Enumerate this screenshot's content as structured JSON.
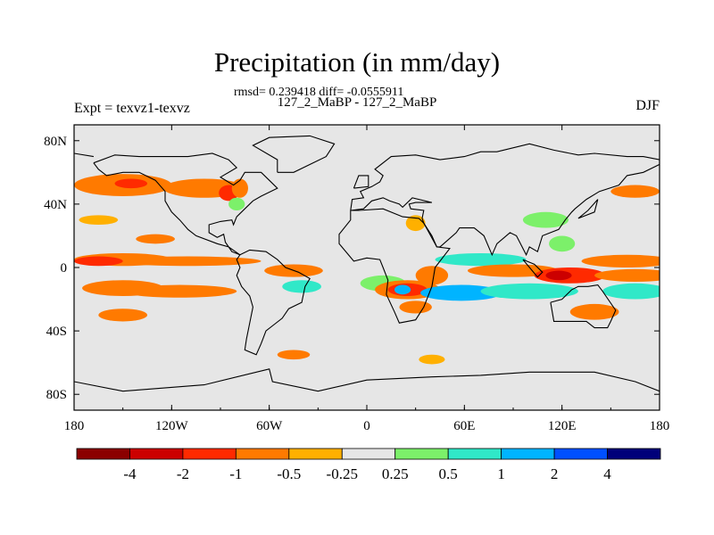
{
  "chart_data": {
    "type": "heatmap",
    "title": "Precipitation (in mm/day)",
    "stats_line": "rmsd= 0.239418 diff= -0.0555911",
    "cases_line": "127_2_MaBP - 127_2_MaBP",
    "left_label": "Expt = texvz1-texvz",
    "right_label": "DJF",
    "projection": "cylindrical equidistant",
    "xlim": [
      -180,
      180
    ],
    "ylim": [
      -90,
      90
    ],
    "x_ticks": [
      {
        "value": -180,
        "label": "180"
      },
      {
        "value": -120,
        "label": "120W"
      },
      {
        "value": -60,
        "label": "60W"
      },
      {
        "value": 0,
        "label": "0"
      },
      {
        "value": 60,
        "label": "60E"
      },
      {
        "value": 120,
        "label": "120E"
      },
      {
        "value": 180,
        "label": "180"
      }
    ],
    "y_ticks": [
      {
        "value": 80,
        "label": "80N"
      },
      {
        "value": 40,
        "label": "40N"
      },
      {
        "value": 0,
        "label": "0"
      },
      {
        "value": -40,
        "label": "40S"
      },
      {
        "value": -80,
        "label": "80S"
      }
    ],
    "colorbar": {
      "labels": [
        "-4",
        "-2",
        "-1",
        "-0.5",
        "-0.25",
        "0.25",
        "0.5",
        "1",
        "2",
        "4"
      ],
      "colors": [
        "#8b0000",
        "#cc0000",
        "#ff2a00",
        "#ff7a00",
        "#ffb000",
        "#e6e6e6",
        "#7cf06a",
        "#30e8c8",
        "#00b4ff",
        "#0050ff",
        "#00007a"
      ]
    },
    "background_color": "#e6e6e6",
    "anomaly_regions": [
      {
        "lon": -150,
        "lat": 5,
        "dlon": 30,
        "dlat": 4,
        "level": -0.5
      },
      {
        "lon": -110,
        "lat": 4,
        "dlon": 45,
        "dlat": 3,
        "level": -0.5
      },
      {
        "lon": -165,
        "lat": 4,
        "dlon": 15,
        "dlat": 3,
        "level": -1
      },
      {
        "lon": -150,
        "lat": -13,
        "dlon": 25,
        "dlat": 5,
        "level": -0.5
      },
      {
        "lon": -115,
        "lat": -15,
        "dlon": 35,
        "dlat": 4,
        "level": -0.5
      },
      {
        "lon": -150,
        "lat": 52,
        "dlon": 30,
        "dlat": 7,
        "level": -0.5
      },
      {
        "lon": -145,
        "lat": 53,
        "dlon": 10,
        "dlat": 3,
        "level": -1
      },
      {
        "lon": -100,
        "lat": 50,
        "dlon": 25,
        "dlat": 6,
        "level": -0.5
      },
      {
        "lon": -85,
        "lat": 47,
        "dlon": 6,
        "dlat": 5,
        "level": -1
      },
      {
        "lon": -78,
        "lat": 50,
        "dlon": 5,
        "dlat": 6,
        "level": -0.5
      },
      {
        "lon": -165,
        "lat": 30,
        "dlon": 12,
        "dlat": 3,
        "level": -0.25
      },
      {
        "lon": -130,
        "lat": 18,
        "dlon": 12,
        "dlat": 3,
        "level": -0.5
      },
      {
        "lon": -150,
        "lat": -30,
        "dlon": 15,
        "dlat": 4,
        "level": -0.5
      },
      {
        "lon": -45,
        "lat": -2,
        "dlon": 18,
        "dlat": 4,
        "level": -0.5
      },
      {
        "lon": -40,
        "lat": -12,
        "dlon": 12,
        "dlat": 4,
        "level": 0.5
      },
      {
        "lon": 10,
        "lat": -10,
        "dlon": 14,
        "dlat": 5,
        "level": 0.25
      },
      {
        "lon": 25,
        "lat": -14,
        "dlon": 20,
        "dlat": 6,
        "level": -0.5
      },
      {
        "lon": 25,
        "lat": -14,
        "dlon": 12,
        "dlat": 4,
        "level": -1
      },
      {
        "lon": 22,
        "lat": -14,
        "dlon": 5,
        "dlat": 3,
        "level": 1
      },
      {
        "lon": 40,
        "lat": -5,
        "dlon": 10,
        "dlat": 6,
        "level": -0.5
      },
      {
        "lon": 30,
        "lat": -25,
        "dlon": 10,
        "dlat": 4,
        "level": -0.5
      },
      {
        "lon": 58,
        "lat": -16,
        "dlon": 25,
        "dlat": 5,
        "level": 1
      },
      {
        "lon": 70,
        "lat": 5,
        "dlon": 28,
        "dlat": 4,
        "level": 0.5
      },
      {
        "lon": 90,
        "lat": -2,
        "dlon": 28,
        "dlat": 4,
        "level": -0.5
      },
      {
        "lon": 100,
        "lat": -15,
        "dlon": 30,
        "dlat": 5,
        "level": 0.5
      },
      {
        "lon": 125,
        "lat": -5,
        "dlon": 22,
        "dlat": 5,
        "level": -1
      },
      {
        "lon": 118,
        "lat": -5,
        "dlon": 8,
        "dlat": 3,
        "level": -2
      },
      {
        "lon": 160,
        "lat": 4,
        "dlon": 28,
        "dlat": 4,
        "level": -0.5
      },
      {
        "lon": 165,
        "lat": -5,
        "dlon": 25,
        "dlat": 4,
        "level": -0.5
      },
      {
        "lon": 165,
        "lat": -15,
        "dlon": 20,
        "dlat": 5,
        "level": 0.5
      },
      {
        "lon": 140,
        "lat": -28,
        "dlon": 15,
        "dlat": 5,
        "level": -0.5
      },
      {
        "lon": 110,
        "lat": 30,
        "dlon": 14,
        "dlat": 5,
        "level": 0.25
      },
      {
        "lon": 120,
        "lat": 15,
        "dlon": 8,
        "dlat": 5,
        "level": 0.25
      },
      {
        "lon": 165,
        "lat": 48,
        "dlon": 15,
        "dlat": 4,
        "level": -0.5
      },
      {
        "lon": 30,
        "lat": 28,
        "dlon": 6,
        "dlat": 5,
        "level": -0.25
      },
      {
        "lon": -80,
        "lat": 40,
        "dlon": 5,
        "dlat": 4,
        "level": 0.25
      },
      {
        "lon": -45,
        "lat": -55,
        "dlon": 10,
        "dlat": 3,
        "level": -0.5
      },
      {
        "lon": 40,
        "lat": -58,
        "dlon": 8,
        "dlat": 3,
        "level": -0.25
      }
    ],
    "coastlines": [
      [
        [
          -168,
          66
        ],
        [
          -155,
          71
        ],
        [
          -140,
          70
        ],
        [
          -125,
          70
        ],
        [
          -110,
          70
        ],
        [
          -95,
          72
        ],
        [
          -85,
          68
        ],
        [
          -80,
          63
        ],
        [
          -90,
          57
        ],
        [
          -82,
          52
        ],
        [
          -78,
          55
        ],
        [
          -75,
          60
        ],
        [
          -65,
          60
        ],
        [
          -60,
          55
        ],
        [
          -55,
          50
        ],
        [
          -65,
          45
        ],
        [
          -70,
          42
        ],
        [
          -75,
          37
        ],
        [
          -80,
          32
        ],
        [
          -82,
          27
        ],
        [
          -83,
          30
        ],
        [
          -90,
          29
        ],
        [
          -97,
          27
        ],
        [
          -97,
          22
        ],
        [
          -92,
          19
        ],
        [
          -88,
          21
        ],
        [
          -87,
          16
        ],
        [
          -83,
          10
        ],
        [
          -78,
          8
        ],
        [
          -80,
          5
        ],
        [
          -78,
          0
        ],
        [
          -80,
          -5
        ],
        [
          -77,
          -12
        ],
        [
          -72,
          -18
        ],
        [
          -70,
          -25
        ],
        [
          -72,
          -35
        ],
        [
          -74,
          -45
        ],
        [
          -75,
          -52
        ],
        [
          -68,
          -55
        ],
        [
          -65,
          -48
        ],
        [
          -62,
          -40
        ],
        [
          -57,
          -36
        ],
        [
          -52,
          -32
        ],
        [
          -48,
          -26
        ],
        [
          -40,
          -22
        ],
        [
          -38,
          -12
        ],
        [
          -35,
          -7
        ],
        [
          -42,
          -3
        ],
        [
          -50,
          0
        ],
        [
          -55,
          5
        ],
        [
          -62,
          10
        ],
        [
          -72,
          11
        ],
        [
          -78,
          8
        ],
        [
          -85,
          13
        ],
        [
          -92,
          15
        ],
        [
          -105,
          20
        ],
        [
          -110,
          24
        ],
        [
          -115,
          30
        ],
        [
          -120,
          35
        ],
        [
          -124,
          42
        ],
        [
          -124,
          48
        ],
        [
          -130,
          55
        ],
        [
          -140,
          60
        ],
        [
          -150,
          60
        ],
        [
          -160,
          58
        ],
        [
          -165,
          62
        ],
        [
          -168,
          66
        ]
      ],
      [
        [
          -55,
          60
        ],
        [
          -45,
          60
        ],
        [
          -25,
          70
        ],
        [
          -20,
          78
        ],
        [
          -35,
          83
        ],
        [
          -60,
          82
        ],
        [
          -70,
          77
        ],
        [
          -55,
          68
        ],
        [
          -55,
          60
        ]
      ],
      [
        [
          -10,
          36
        ],
        [
          -5,
          36
        ],
        [
          10,
          37
        ],
        [
          22,
          32
        ],
        [
          32,
          31
        ],
        [
          35,
          28
        ],
        [
          43,
          13
        ],
        [
          51,
          12
        ],
        [
          42,
          0
        ],
        [
          40,
          -12
        ],
        [
          35,
          -25
        ],
        [
          30,
          -33
        ],
        [
          20,
          -35
        ],
        [
          17,
          -28
        ],
        [
          12,
          -17
        ],
        [
          13,
          -8
        ],
        [
          10,
          0
        ],
        [
          8,
          5
        ],
        [
          0,
          6
        ],
        [
          -8,
          4
        ],
        [
          -17,
          15
        ],
        [
          -17,
          21
        ],
        [
          -10,
          30
        ],
        [
          -10,
          36
        ]
      ],
      [
        [
          -10,
          36
        ],
        [
          -9,
          43
        ],
        [
          -2,
          44
        ],
        [
          -4,
          48
        ],
        [
          3,
          51
        ],
        [
          8,
          54
        ],
        [
          10,
          58
        ],
        [
          5,
          62
        ],
        [
          15,
          70
        ],
        [
          30,
          71
        ],
        [
          45,
          68
        ],
        [
          60,
          70
        ],
        [
          70,
          73
        ],
        [
          80,
          73
        ],
        [
          100,
          78
        ],
        [
          115,
          74
        ],
        [
          130,
          71
        ],
        [
          140,
          72
        ],
        [
          160,
          70
        ],
        [
          170,
          70
        ],
        [
          180,
          68
        ],
        [
          180,
          65
        ],
        [
          170,
          60
        ],
        [
          160,
          58
        ],
        [
          155,
          52
        ],
        [
          143,
          48
        ],
        [
          135,
          43
        ],
        [
          128,
          37
        ],
        [
          126,
          35
        ],
        [
          122,
          30
        ],
        [
          118,
          24
        ],
        [
          108,
          20
        ],
        [
          105,
          10
        ],
        [
          100,
          13
        ],
        [
          98,
          8
        ],
        [
          92,
          20
        ],
        [
          88,
          22
        ],
        [
          80,
          15
        ],
        [
          77,
          8
        ],
        [
          72,
          20
        ],
        [
          66,
          25
        ],
        [
          57,
          25
        ],
        [
          55,
          22
        ],
        [
          45,
          13
        ],
        [
          43,
          13
        ],
        [
          40,
          20
        ],
        [
          35,
          28
        ],
        [
          34,
          31
        ],
        [
          35,
          36
        ],
        [
          27,
          37
        ],
        [
          26,
          40
        ],
        [
          30,
          41
        ],
        [
          40,
          41
        ],
        [
          28,
          44
        ],
        [
          22,
          38
        ],
        [
          20,
          40
        ],
        [
          14,
          42
        ],
        [
          10,
          44
        ],
        [
          3,
          42
        ],
        [
          -2,
          37
        ],
        [
          -10,
          36
        ]
      ],
      [
        [
          113,
          -22
        ],
        [
          115,
          -34
        ],
        [
          123,
          -34
        ],
        [
          135,
          -34
        ],
        [
          140,
          -38
        ],
        [
          148,
          -38
        ],
        [
          150,
          -34
        ],
        [
          153,
          -27
        ],
        [
          145,
          -15
        ],
        [
          142,
          -11
        ],
        [
          136,
          -12
        ],
        [
          130,
          -12
        ],
        [
          126,
          -14
        ],
        [
          120,
          -20
        ],
        [
          113,
          -22
        ]
      ],
      [
        [
          96,
          5
        ],
        [
          105,
          -6
        ],
        [
          108,
          -3
        ],
        [
          103,
          2
        ],
        [
          96,
          5
        ]
      ],
      [
        [
          -180,
          -72
        ],
        [
          -150,
          -78
        ],
        [
          -100,
          -74
        ],
        [
          -60,
          -64
        ],
        [
          -58,
          -72
        ],
        [
          -30,
          -78
        ],
        [
          0,
          -71
        ],
        [
          40,
          -69
        ],
        [
          70,
          -68
        ],
        [
          100,
          -66
        ],
        [
          140,
          -66
        ],
        [
          165,
          -72
        ],
        [
          180,
          -78
        ]
      ],
      [
        [
          -8,
          50
        ],
        [
          -5,
          58
        ],
        [
          1,
          58
        ],
        [
          1,
          51
        ],
        [
          -8,
          50
        ]
      ],
      [
        [
          130,
          31
        ],
        [
          140,
          35
        ],
        [
          142,
          43
        ],
        [
          136,
          36
        ],
        [
          130,
          31
        ]
      ],
      [
        [
          -168,
          70
        ],
        [
          -180,
          72
        ]
      ]
    ]
  }
}
